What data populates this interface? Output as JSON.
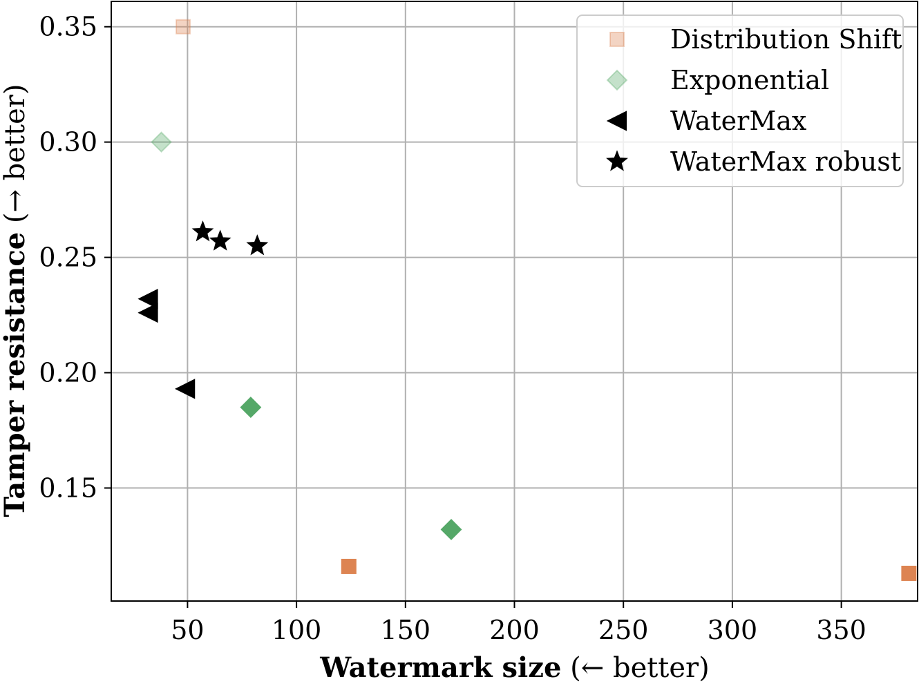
{
  "chart_data": {
    "type": "scatter",
    "title": "",
    "xlabel": {
      "bold": "Watermark size",
      "normal": " (← better)"
    },
    "ylabel": {
      "bold": "Tamper resistance",
      "normal": " (→ better)"
    },
    "xlim": [
      15,
      385
    ],
    "ylim": [
      0.101,
      0.361
    ],
    "xticks": [
      50,
      100,
      150,
      200,
      250,
      300,
      350
    ],
    "xtick_labels": [
      "50",
      "100",
      "150",
      "200",
      "250",
      "300",
      "350"
    ],
    "yticks": [
      0.15,
      0.2,
      0.25,
      0.3,
      0.35
    ],
    "ytick_labels": [
      "0.15",
      "0.20",
      "0.25",
      "0.30",
      "0.35"
    ],
    "grid": true,
    "legend_position": "top-right",
    "series": [
      {
        "name": "Distribution Shift",
        "marker": "square",
        "color": "#dd8452",
        "points": [
          {
            "x": 48,
            "y": 0.35,
            "alpha": 0.35
          },
          {
            "x": 124,
            "y": 0.116,
            "alpha": 1.0
          },
          {
            "x": 381,
            "y": 0.113,
            "alpha": 1.0
          }
        ]
      },
      {
        "name": "Exponential",
        "marker": "diamond",
        "color": "#55a868",
        "points": [
          {
            "x": 38,
            "y": 0.3,
            "alpha": 0.35
          },
          {
            "x": 79,
            "y": 0.185,
            "alpha": 1.0
          },
          {
            "x": 171,
            "y": 0.132,
            "alpha": 1.0
          }
        ]
      },
      {
        "name": "WaterMax",
        "marker": "triangle-left",
        "color": "#000000",
        "points": [
          {
            "x": 32,
            "y": 0.232,
            "alpha": 1.0
          },
          {
            "x": 32,
            "y": 0.226,
            "alpha": 1.0
          },
          {
            "x": 49,
            "y": 0.193,
            "alpha": 1.0
          }
        ]
      },
      {
        "name": "WaterMax robust",
        "marker": "star",
        "color": "#000000",
        "points": [
          {
            "x": 57,
            "y": 0.261,
            "alpha": 1.0
          },
          {
            "x": 65,
            "y": 0.257,
            "alpha": 1.0
          },
          {
            "x": 82,
            "y": 0.255,
            "alpha": 1.0
          }
        ]
      }
    ]
  }
}
